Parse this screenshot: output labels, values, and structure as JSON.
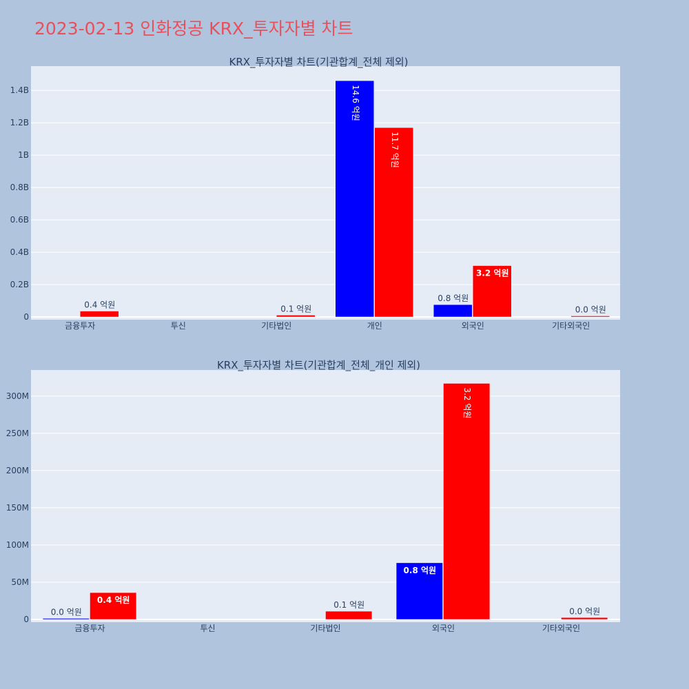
{
  "title": "2023-02-13 인화정공 KRX_투자자별 차트",
  "colors": {
    "background": "#b0c4de",
    "plot_bg": "#e5ecf6",
    "grid": "#ffffff",
    "title": "#e8505b",
    "text": "#2a3f5f",
    "buy": "#0000ff",
    "sell": "#ff0000"
  },
  "chart_data": [
    {
      "type": "bar",
      "title": "KRX_투자자별 차트(기관합계_전체 제외)",
      "categories": [
        "금융투자",
        "투신",
        "기타법인",
        "개인",
        "외국인",
        "기타외국인"
      ],
      "yticks": [
        0,
        200000000,
        400000000,
        600000000,
        800000000,
        1000000000,
        1200000000,
        1400000000
      ],
      "yticklabels": [
        "0",
        "0.2B",
        "0.4B",
        "0.6B",
        "0.8B",
        "1B",
        "1.2B",
        "1.4B"
      ],
      "ylim": [
        0,
        1550000000
      ],
      "series": [
        {
          "color": "#0000ff",
          "values": [
            null,
            null,
            null,
            1460000000,
            76000000,
            null
          ],
          "labels": [
            "",
            "",
            "",
            "14.6 억원",
            "0.8 억원",
            ""
          ]
        },
        {
          "color": "#ff0000",
          "values": [
            36000000,
            null,
            11000000,
            1170000000,
            317000000,
            2500000
          ],
          "labels": [
            "0.4 억원",
            "",
            "0.1 억원",
            "11.7 억원",
            "3.2 억원",
            "0.0 억원"
          ]
        }
      ]
    },
    {
      "type": "bar",
      "title": "KRX_투자자별 차트(기관합계_전체_개인 제외)",
      "categories": [
        "금융투자",
        "투신",
        "기타법인",
        "외국인",
        "기타외국인"
      ],
      "yticks": [
        0,
        50000000,
        100000000,
        150000000,
        200000000,
        250000000,
        300000000
      ],
      "yticklabels": [
        "0",
        "50M",
        "100M",
        "150M",
        "200M",
        "250M",
        "300M"
      ],
      "ylim": [
        0,
        335000000
      ],
      "series": [
        {
          "color": "#0000ff",
          "values": [
            400000,
            null,
            null,
            76000000,
            null
          ],
          "labels": [
            "0.0 억원",
            "",
            "",
            "0.8 억원",
            ""
          ]
        },
        {
          "color": "#ff0000",
          "values": [
            36000000,
            null,
            11000000,
            317000000,
            2500000
          ],
          "labels": [
            "0.4 억원",
            "",
            "0.1 억원",
            "3.2 억원",
            "0.0 억원"
          ]
        }
      ]
    }
  ]
}
